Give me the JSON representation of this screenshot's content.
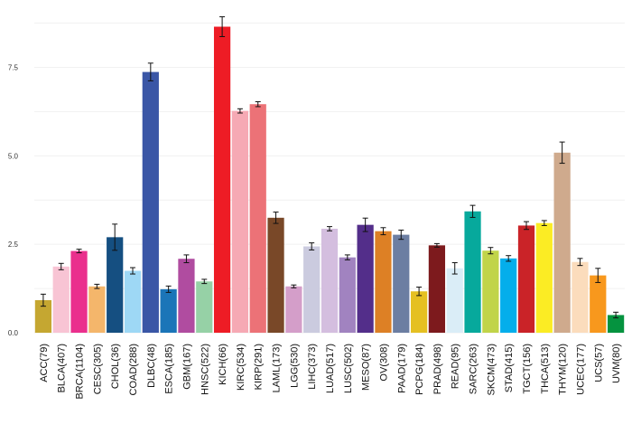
{
  "chart_data": {
    "type": "bar",
    "title": "",
    "xlabel": "",
    "ylabel": "",
    "ylim": [
      0,
      9.2
    ],
    "yticks": [
      0,
      2.5,
      5,
      7.5
    ],
    "ytick_labels": [
      "0.0",
      "2.5",
      "5.0",
      "7.5"
    ],
    "grid": true,
    "legend": "none",
    "categories": [
      "ACC(79)",
      "BLCA(407)",
      "BRCA(1104)",
      "CESC(305)",
      "CHOL(36)",
      "COAD(288)",
      "DLBC(48)",
      "ESCA(185)",
      "GBM(167)",
      "HNSC(522)",
      "KICH(66)",
      "KIRC(534)",
      "KIRP(291)",
      "LAML(173)",
      "LGG(530)",
      "LIHC(373)",
      "LUAD(517)",
      "LUSC(502)",
      "MESO(87)",
      "OV(308)",
      "PAAD(179)",
      "PCPG(184)",
      "PRAD(498)",
      "READ(95)",
      "SARC(263)",
      "SKCM(473)",
      "STAD(415)",
      "TGCT(156)",
      "THCA(513)",
      "THYM(120)",
      "UCEC(177)",
      "UCS(57)",
      "UVM(80)"
    ],
    "values": [
      0.92,
      1.87,
      2.31,
      1.31,
      2.7,
      1.75,
      7.37,
      1.23,
      2.09,
      1.45,
      8.65,
      6.27,
      6.46,
      3.25,
      1.31,
      2.44,
      2.94,
      2.13,
      3.05,
      2.87,
      2.77,
      1.17,
      2.47,
      1.82,
      3.43,
      2.32,
      2.1,
      3.03,
      3.1,
      5.09,
      2.0,
      1.62,
      0.5
    ],
    "errors": [
      0.17,
      0.09,
      0.05,
      0.06,
      0.37,
      0.09,
      0.25,
      0.09,
      0.11,
      0.06,
      0.28,
      0.06,
      0.07,
      0.16,
      0.04,
      0.1,
      0.06,
      0.07,
      0.19,
      0.1,
      0.13,
      0.12,
      0.05,
      0.16,
      0.17,
      0.09,
      0.08,
      0.11,
      0.07,
      0.3,
      0.1,
      0.2,
      0.08
    ],
    "colors": [
      "#c5a731",
      "#f8c4d4",
      "#ea2f8d",
      "#f4b66b",
      "#154f81",
      "#9ed8f5",
      "#3a56a6",
      "#1b75b8",
      "#b04ca0",
      "#96d1a6",
      "#ee1c25",
      "#f6a9b4",
      "#ec7277",
      "#794828",
      "#d49ec9",
      "#cbcbdf",
      "#d4bedf",
      "#a183c0",
      "#532e8a",
      "#dd8025",
      "#6c7ea2",
      "#e5c022",
      "#7d1a1d",
      "#daedf7",
      "#07a99c",
      "#c1d449",
      "#04aeeb",
      "#ca2328",
      "#fbec24",
      "#cfaa8d",
      "#fbdcbc",
      "#f8981d",
      "#05933f"
    ]
  }
}
